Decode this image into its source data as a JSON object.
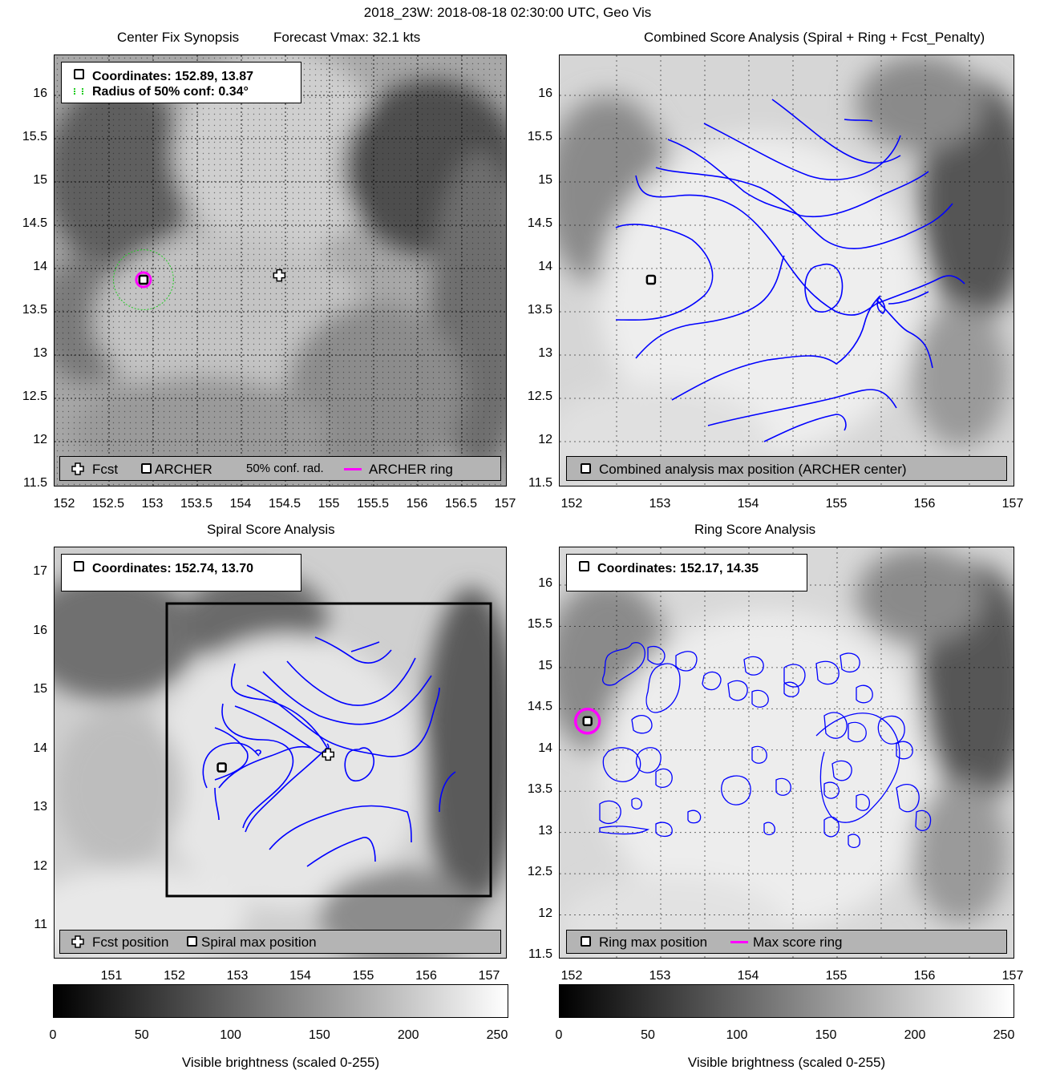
{
  "figure_title": "2018_23W: 2018-08-18 02:30:00 UTC, Geo Vis",
  "panels": {
    "synopsis": {
      "title": "Center Fix Synopsis",
      "subtitle": "Forecast Vmax: 32.1 kts",
      "info_coords": "Coordinates: 152.89, 13.87",
      "info_radius": "Radius of 50% conf: 0.34°",
      "legend": {
        "fcst": "Fcst",
        "archer": "ARCHER",
        "conf": "50% conf. rad.",
        "ring": "ARCHER ring"
      },
      "yticks": [
        "16",
        "15.5",
        "15",
        "14.5",
        "14",
        "13.5",
        "13",
        "12.5",
        "12",
        "11.5"
      ],
      "xticks": [
        "152",
        "152.5",
        "153",
        "153.5",
        "154",
        "154.5",
        "155",
        "155.5",
        "156",
        "156.5",
        "157"
      ],
      "center_lon": 152.89,
      "center_lat": 13.87,
      "forecast_lon": 154.43,
      "forecast_lat": 13.92,
      "confidence_radius_deg": 0.34
    },
    "combined": {
      "title": "Combined Score Analysis (Spiral + Ring + Fcst_Penalty)",
      "legend": "Combined analysis max position (ARCHER center)",
      "yticks": [
        "16",
        "15.5",
        "15",
        "14.5",
        "14",
        "13.5",
        "13",
        "12.5",
        "12",
        "11.5"
      ],
      "xticks": [
        "152",
        "153",
        "154",
        "155",
        "156",
        "157"
      ],
      "center_lon": 152.89,
      "center_lat": 13.87
    },
    "spiral": {
      "title": "Spiral Score Analysis",
      "info_coords": "Coordinates: 152.74, 13.70",
      "legend": {
        "fcst": "Fcst position",
        "max": "Spiral max position"
      },
      "yticks": [
        "17",
        "16",
        "15",
        "14",
        "13",
        "12",
        "11"
      ],
      "xticks": [
        "151",
        "152",
        "153",
        "154",
        "155",
        "156",
        "157"
      ],
      "center_lon": 152.74,
      "center_lat": 13.7,
      "forecast_lon": 154.43,
      "forecast_lat": 13.92
    },
    "ring": {
      "title": "Ring Score Analysis",
      "info_coords": "Coordinates: 152.17, 14.35",
      "legend": {
        "max": "Ring max position",
        "ring": "Max score ring"
      },
      "yticks": [
        "16",
        "15.5",
        "15",
        "14.5",
        "14",
        "13.5",
        "13",
        "12.5",
        "12",
        "11.5"
      ],
      "xticks": [
        "152",
        "153",
        "154",
        "155",
        "156",
        "157"
      ],
      "center_lon": 152.17,
      "center_lat": 14.35
    }
  },
  "colorbars": [
    {
      "ticks": [
        "0",
        "50",
        "100",
        "150",
        "200",
        "250"
      ],
      "label": "Visible brightness (scaled 0-255)",
      "min": 0,
      "max": 255
    },
    {
      "ticks": [
        "0",
        "50",
        "100",
        "150",
        "200",
        "250"
      ],
      "label": "Visible brightness (scaled 0-255)",
      "min": 0,
      "max": 255
    }
  ],
  "colors": {
    "contour": "#0000ff",
    "ring": "#ff00ff",
    "confidence": "#22cc22"
  }
}
